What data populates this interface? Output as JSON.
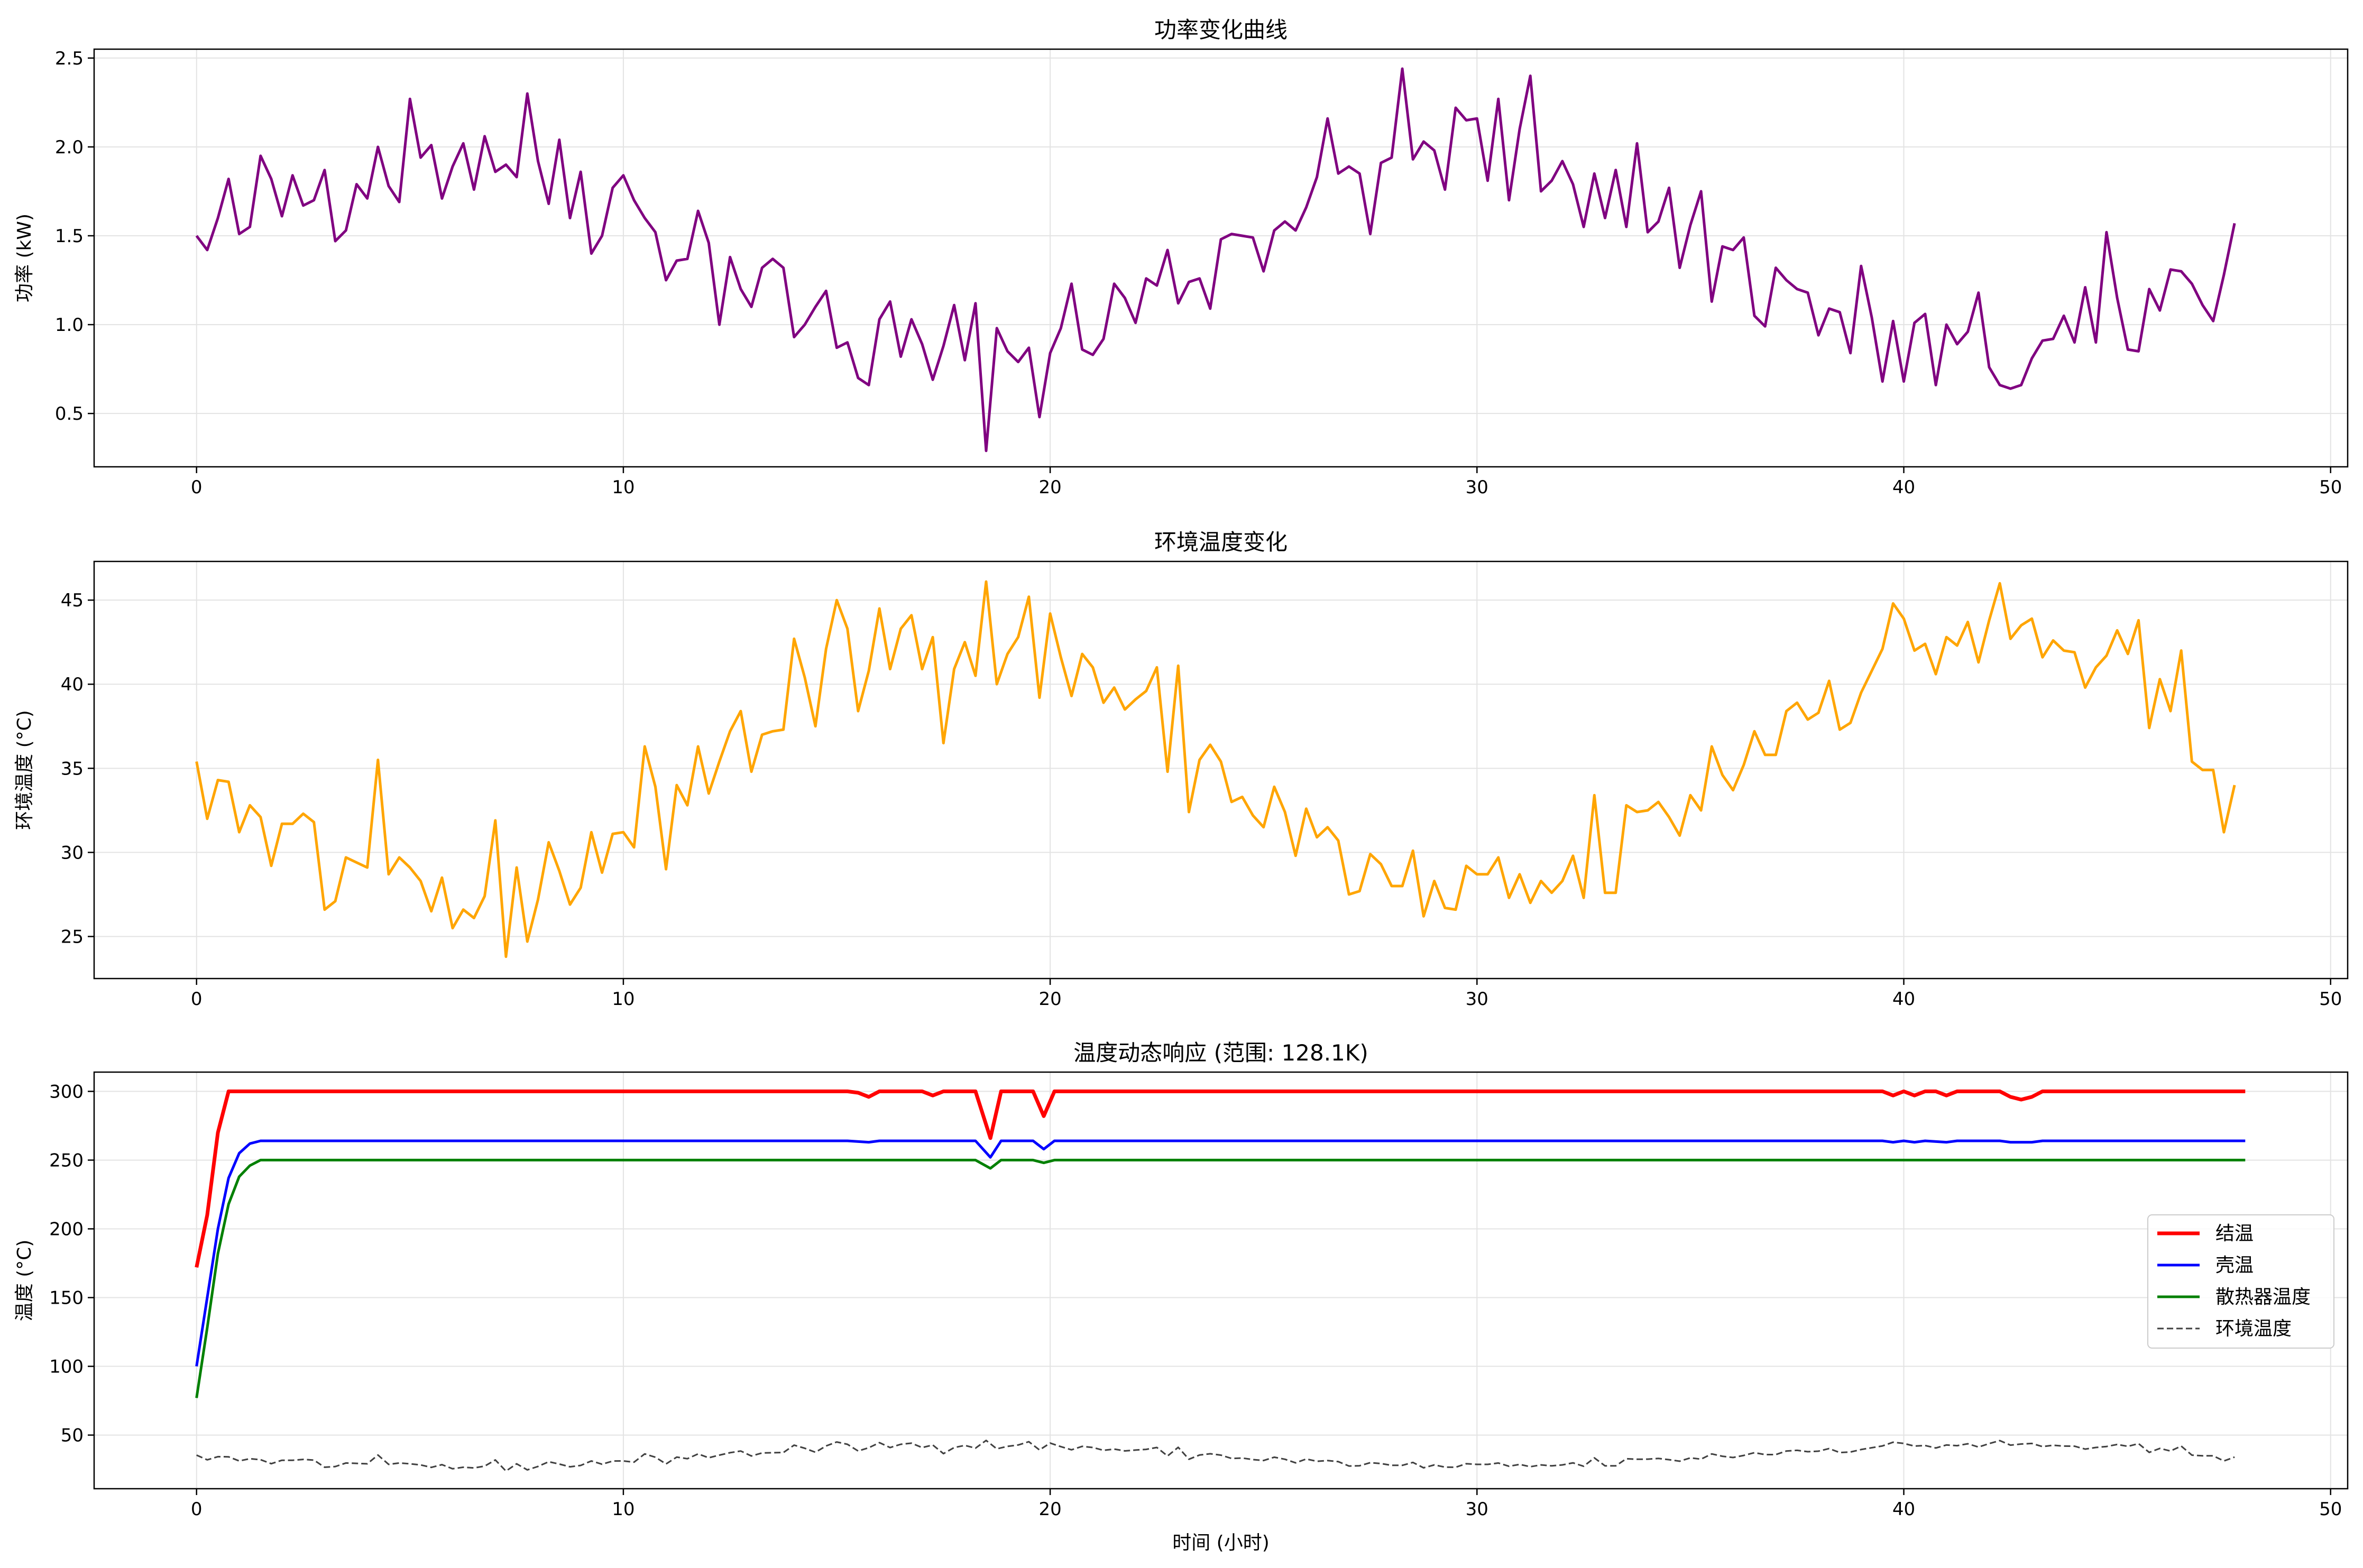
{
  "chart_data": [
    {
      "type": "line",
      "title": "功率变化曲线",
      "xlabel": "",
      "ylabel": "功率 (kW)",
      "xlim": [
        -2.4,
        50.4
      ],
      "ylim": [
        0.2,
        2.55
      ],
      "xticks": [
        0,
        10,
        20,
        30,
        40,
        50
      ],
      "yticks": [
        0.5,
        1.0,
        1.5,
        2.0,
        2.5
      ],
      "ytick_labels": [
        "0.5",
        "1.0",
        "1.5",
        "2.0",
        "2.5"
      ],
      "grid": true,
      "series": [
        {
          "color": "#800080",
          "x_start": 0,
          "x_step": 0.25,
          "values": [
            1.5,
            1.42,
            1.6,
            1.82,
            1.51,
            1.55,
            1.95,
            1.82,
            1.61,
            1.84,
            1.67,
            1.7,
            1.87,
            1.47,
            1.53,
            1.79,
            1.71,
            2.0,
            1.78,
            1.69,
            2.27,
            1.94,
            2.01,
            1.71,
            1.89,
            2.02,
            1.76,
            2.06,
            1.86,
            1.9,
            1.83,
            2.3,
            1.92,
            1.68,
            2.04,
            1.6,
            1.86,
            1.4,
            1.5,
            1.77,
            1.84,
            1.7,
            1.6,
            1.52,
            1.25,
            1.36,
            1.37,
            1.64,
            1.46,
            1.0,
            1.38,
            1.2,
            1.1,
            1.32,
            1.37,
            1.32,
            0.93,
            1.0,
            1.1,
            1.19,
            0.87,
            0.9,
            0.7,
            0.66,
            1.03,
            1.13,
            0.82,
            1.03,
            0.89,
            0.69,
            0.88,
            1.11,
            0.8,
            1.12,
            0.29,
            0.98,
            0.85,
            0.79,
            0.87,
            0.48,
            0.84,
            0.98,
            1.23,
            0.86,
            0.83,
            0.92,
            1.23,
            1.15,
            1.01,
            1.26,
            1.22,
            1.42,
            1.12,
            1.24,
            1.26,
            1.09,
            1.48,
            1.51,
            1.5,
            1.49,
            1.3,
            1.53,
            1.58,
            1.53,
            1.66,
            1.83,
            2.16,
            1.85,
            1.89,
            1.85,
            1.51,
            1.91,
            1.94,
            2.44,
            1.93,
            2.03,
            1.98,
            1.76,
            2.22,
            2.15,
            2.16,
            1.81,
            2.27,
            1.7,
            2.1,
            2.4,
            1.75,
            1.81,
            1.92,
            1.79,
            1.55,
            1.85,
            1.6,
            1.87,
            1.55,
            2.02,
            1.52,
            1.58,
            1.77,
            1.32,
            1.56,
            1.75,
            1.13,
            1.44,
            1.42,
            1.49,
            1.05,
            0.99,
            1.32,
            1.25,
            1.2,
            1.18,
            0.94,
            1.09,
            1.07,
            0.84,
            1.33,
            1.04,
            0.68,
            1.02,
            0.68,
            1.01,
            1.06,
            0.66,
            1.0,
            0.89,
            0.96,
            1.18,
            0.76,
            0.66,
            0.64,
            0.66,
            0.81,
            0.91,
            0.92,
            1.05,
            0.9,
            1.21,
            0.9,
            1.52,
            1.15,
            0.86,
            0.85,
            1.2,
            1.08,
            1.31,
            1.3,
            1.23,
            1.11,
            1.02,
            1.28,
            1.57
          ]
        }
      ]
    },
    {
      "type": "line",
      "title": "环境温度变化",
      "xlabel": "",
      "ylabel": "环境温度 (°C)",
      "xlim": [
        -2.4,
        50.4
      ],
      "ylim": [
        22.5,
        47.3
      ],
      "xticks": [
        0,
        10,
        20,
        30,
        40,
        50
      ],
      "yticks": [
        25,
        30,
        35,
        40,
        45
      ],
      "ytick_labels": [
        "25",
        "30",
        "35",
        "40",
        "45"
      ],
      "grid": true,
      "series": [
        {
          "color": "#ffa500",
          "x_start": 0,
          "x_step": 0.25,
          "values": [
            35.4,
            32.0,
            34.3,
            34.2,
            31.2,
            32.8,
            32.1,
            29.2,
            31.7,
            31.7,
            32.3,
            31.8,
            26.6,
            27.1,
            29.7,
            29.4,
            29.1,
            35.5,
            28.7,
            29.7,
            29.1,
            28.3,
            26.5,
            28.5,
            25.5,
            26.6,
            26.1,
            27.4,
            31.9,
            23.8,
            29.1,
            24.7,
            27.2,
            30.6,
            28.9,
            26.9,
            27.9,
            31.2,
            28.8,
            31.1,
            31.2,
            30.3,
            36.3,
            33.9,
            29.0,
            34.0,
            32.8,
            36.3,
            33.5,
            35.4,
            37.2,
            38.4,
            34.8,
            37.0,
            37.2,
            37.3,
            42.7,
            40.4,
            37.5,
            42.1,
            45.0,
            43.3,
            38.4,
            40.8,
            44.5,
            40.9,
            43.3,
            44.1,
            40.9,
            42.8,
            36.5,
            40.9,
            42.5,
            40.5,
            46.1,
            40.0,
            41.8,
            42.8,
            45.2,
            39.2,
            44.2,
            41.6,
            39.3,
            41.8,
            41.0,
            38.9,
            39.8,
            38.5,
            39.1,
            39.6,
            41.0,
            34.8,
            41.1,
            32.4,
            35.5,
            36.4,
            35.4,
            33.0,
            33.3,
            32.2,
            31.5,
            33.9,
            32.4,
            29.8,
            32.6,
            30.9,
            31.5,
            30.7,
            27.5,
            27.7,
            29.9,
            29.3,
            28.0,
            28.0,
            30.1,
            26.2,
            28.3,
            26.7,
            26.6,
            29.2,
            28.7,
            28.7,
            29.7,
            27.3,
            28.7,
            27.0,
            28.3,
            27.6,
            28.3,
            29.8,
            27.3,
            33.4,
            27.6,
            27.6,
            32.8,
            32.4,
            32.5,
            33.0,
            32.1,
            31.0,
            33.4,
            32.5,
            36.3,
            34.6,
            33.7,
            35.2,
            37.2,
            35.8,
            35.8,
            38.4,
            38.9,
            37.9,
            38.3,
            40.2,
            37.3,
            37.7,
            39.5,
            40.8,
            42.1,
            44.8,
            43.9,
            42.0,
            42.4,
            40.6,
            42.8,
            42.3,
            43.7,
            41.3,
            43.8,
            46.0,
            42.7,
            43.5,
            43.9,
            41.6,
            42.6,
            42.0,
            41.9,
            39.8,
            41.0,
            41.7,
            43.2,
            41.8,
            43.8,
            37.4,
            40.3,
            38.4,
            42.0,
            35.4,
            34.9,
            34.9,
            31.2,
            34.0
          ]
        }
      ]
    },
    {
      "type": "line",
      "title": "温度动态响应 (范围: 128.1K)",
      "xlabel": "时间 (小时)",
      "ylabel": "温度 (°C)",
      "xlim": [
        -2.4,
        50.4
      ],
      "ylim": [
        11,
        314
      ],
      "xticks": [
        0,
        10,
        20,
        30,
        40,
        50
      ],
      "yticks": [
        50,
        100,
        150,
        200,
        250,
        300
      ],
      "ytick_labels": [
        "50",
        "100",
        "150",
        "200",
        "250",
        "300"
      ],
      "grid": true,
      "legend_position": "center-right",
      "series": [
        {
          "name": "结温",
          "color": "#ff0000",
          "style": "solid",
          "width": "thick",
          "points": [
            [
              0,
              172
            ],
            [
              0.25,
              210
            ],
            [
              0.5,
              270
            ],
            [
              0.75,
              300
            ],
            [
              15.25,
              300
            ],
            [
              15.5,
              299
            ],
            [
              15.75,
              296
            ],
            [
              16.0,
              300
            ],
            [
              17.0,
              300
            ],
            [
              17.25,
              297
            ],
            [
              17.5,
              300
            ],
            [
              18.25,
              300
            ],
            [
              18.6,
              266
            ],
            [
              18.85,
              300
            ],
            [
              19.6,
              300
            ],
            [
              19.85,
              282
            ],
            [
              20.1,
              300
            ],
            [
              39.5,
              300
            ],
            [
              39.75,
              297
            ],
            [
              40.0,
              300
            ],
            [
              40.25,
              297
            ],
            [
              40.5,
              300
            ],
            [
              40.75,
              300
            ],
            [
              41.0,
              297
            ],
            [
              41.25,
              300
            ],
            [
              42.25,
              300
            ],
            [
              42.5,
              296
            ],
            [
              42.75,
              294
            ],
            [
              43.0,
              296
            ],
            [
              43.25,
              300
            ],
            [
              48.0,
              300
            ]
          ]
        },
        {
          "name": "壳温",
          "color": "#0000ff",
          "style": "solid",
          "width": "normal",
          "points": [
            [
              0,
              100
            ],
            [
              0.25,
              150
            ],
            [
              0.5,
              200
            ],
            [
              0.75,
              237
            ],
            [
              1.0,
              255
            ],
            [
              1.25,
              262
            ],
            [
              1.5,
              264
            ],
            [
              15.25,
              264
            ],
            [
              15.75,
              263
            ],
            [
              16.0,
              264
            ],
            [
              18.25,
              264
            ],
            [
              18.6,
              252
            ],
            [
              18.85,
              264
            ],
            [
              19.6,
              264
            ],
            [
              19.85,
              258
            ],
            [
              20.1,
              264
            ],
            [
              39.5,
              264
            ],
            [
              39.75,
              263
            ],
            [
              40.0,
              264
            ],
            [
              40.25,
              263
            ],
            [
              40.5,
              264
            ],
            [
              41.0,
              263
            ],
            [
              41.25,
              264
            ],
            [
              42.25,
              264
            ],
            [
              42.5,
              263
            ],
            [
              43.0,
              263
            ],
            [
              43.25,
              264
            ],
            [
              48.0,
              264
            ]
          ]
        },
        {
          "name": "散热器温度",
          "color": "#008000",
          "style": "solid",
          "width": "normal",
          "points": [
            [
              0,
              77
            ],
            [
              0.25,
              128
            ],
            [
              0.5,
              182
            ],
            [
              0.75,
              218
            ],
            [
              1.0,
              238
            ],
            [
              1.25,
              246
            ],
            [
              1.5,
              250
            ],
            [
              18.25,
              250
            ],
            [
              18.6,
              244
            ],
            [
              18.85,
              250
            ],
            [
              19.6,
              250
            ],
            [
              19.85,
              248
            ],
            [
              20.1,
              250
            ],
            [
              48.0,
              250
            ]
          ]
        },
        {
          "name": "环境温度",
          "color": "#404040",
          "style": "dashed",
          "width": "thin",
          "ref_series": 1
        }
      ]
    }
  ]
}
